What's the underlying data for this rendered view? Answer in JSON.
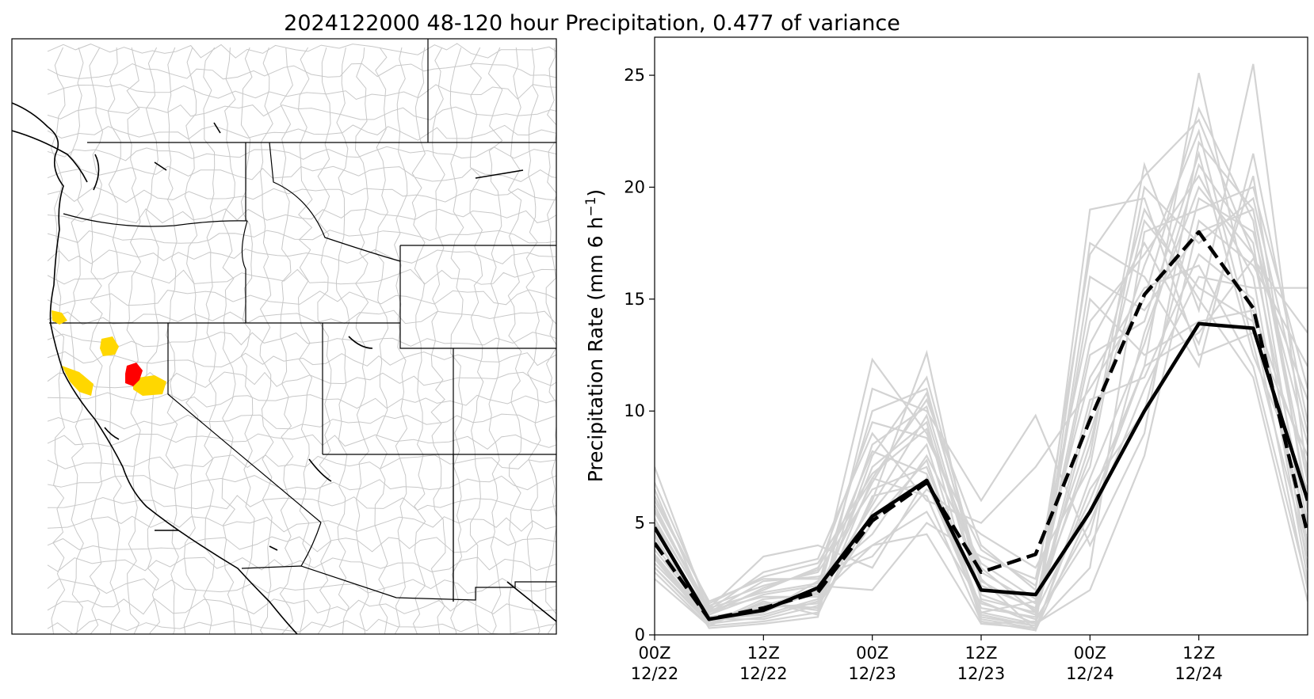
{
  "figure": {
    "title": "2024122000 48-120 hour Precipitation, 0.477 of variance"
  },
  "map_panel": {
    "highlight_colors": {
      "gold": "#FFD700",
      "red": "#FF0000"
    },
    "line_colors": {
      "boundary": "#000000",
      "basin": "#c8c8c8"
    }
  },
  "chart_data": {
    "type": "line",
    "title": "2024122000 48-120 hour Precipitation, 0.477 of variance",
    "xlabel": "",
    "ylabel": "Precipitation Rate (mm 6 h",
    "ylabel_sup": "−1",
    "ylabel_end": ")",
    "ylim": [
      0,
      26.7
    ],
    "xlim": [
      0,
      18
    ],
    "yticks": [
      0,
      5,
      10,
      15,
      20,
      25
    ],
    "xticks": [
      {
        "value": 0,
        "line1": "00Z",
        "line2": "12/22"
      },
      {
        "value": 3,
        "line1": "12Z",
        "line2": "12/22"
      },
      {
        "value": 6,
        "line1": "00Z",
        "line2": "12/23"
      },
      {
        "value": 9,
        "line1": "12Z",
        "line2": "12/23"
      },
      {
        "value": 12,
        "line1": "00Z",
        "line2": "12/24"
      },
      {
        "value": 15,
        "line1": "12Z",
        "line2": "12/24"
      }
    ],
    "x": [
      0,
      1.5,
      3,
      4.5,
      6,
      7.5,
      9,
      10.5,
      12,
      13.5,
      15,
      16.5,
      18
    ],
    "series": [
      {
        "style": "solid",
        "color": "#000000",
        "values": [
          4.8,
          0.7,
          1.1,
          2.1,
          5.3,
          6.9,
          2.0,
          1.8,
          5.5,
          10.0,
          13.9,
          13.7,
          6.0
        ]
      },
      {
        "style": "dashed",
        "color": "#000000",
        "values": [
          4.1,
          0.7,
          1.2,
          1.9,
          5.1,
          6.8,
          2.8,
          3.6,
          9.6,
          15.2,
          18.0,
          14.6,
          4.5
        ]
      }
    ],
    "ensemble_color": "#d3d3d3",
    "ensemble": [
      [
        7.5,
        1.0,
        2.0,
        3.0,
        7.0,
        10.5,
        4.0,
        2.0,
        17.0,
        20.5,
        23.0,
        17.0,
        5.0
      ],
      [
        6.5,
        0.8,
        1.0,
        2.0,
        12.3,
        9.0,
        3.0,
        1.0,
        6.0,
        12.0,
        25.1,
        14.0,
        2.0
      ],
      [
        3.0,
        0.5,
        0.8,
        1.5,
        6.0,
        12.6,
        1.5,
        0.5,
        19.0,
        19.5,
        12.5,
        13.5,
        8.0
      ],
      [
        5.0,
        1.2,
        3.5,
        4.0,
        3.0,
        7.0,
        1.0,
        1.5,
        8.0,
        21.0,
        14.5,
        25.5,
        7.0
      ],
      [
        4.5,
        0.3,
        0.5,
        0.8,
        11.0,
        10.0,
        6.0,
        9.8,
        4.0,
        9.0,
        22.0,
        19.0,
        6.0
      ],
      [
        6.0,
        1.5,
        2.5,
        2.5,
        4.0,
        4.5,
        0.5,
        0.3,
        17.5,
        16.0,
        12.0,
        21.5,
        9.5
      ],
      [
        3.5,
        0.6,
        1.4,
        1.2,
        8.0,
        11.5,
        2.5,
        0.2,
        7.0,
        13.0,
        21.0,
        17.5,
        3.0
      ],
      [
        2.8,
        0.4,
        0.6,
        1.0,
        5.5,
        8.5,
        0.8,
        0.4,
        3.0,
        18.0,
        19.0,
        20.0,
        11.0
      ],
      [
        5.5,
        1.1,
        2.8,
        3.4,
        9.0,
        6.0,
        5.0,
        7.5,
        11.0,
        15.0,
        23.5,
        18.5,
        4.0
      ],
      [
        4.0,
        0.9,
        1.8,
        2.2,
        2.0,
        5.0,
        3.5,
        2.5,
        14.0,
        17.0,
        20.5,
        16.0,
        2.5
      ],
      [
        3.2,
        0.7,
        0.9,
        1.6,
        7.5,
        9.5,
        0.5,
        0.6,
        5.0,
        11.0,
        16.0,
        15.5,
        15.5
      ],
      [
        6.8,
        1.3,
        2.2,
        2.8,
        6.5,
        7.5,
        1.2,
        0.8,
        10.0,
        19.0,
        15.0,
        11.5,
        1.5
      ],
      [
        4.4,
        0.5,
        1.6,
        1.8,
        10.0,
        11.0,
        2.2,
        1.2,
        12.5,
        14.0,
        21.5,
        12.5,
        6.5
      ],
      [
        5.2,
        1.0,
        2.4,
        2.6,
        3.5,
        6.5,
        4.5,
        3.0,
        7.5,
        20.0,
        17.5,
        19.5,
        9.0
      ],
      [
        3.8,
        0.8,
        1.2,
        1.4,
        8.5,
        10.2,
        1.8,
        0.9,
        15.0,
        12.5,
        14.0,
        14.5,
        7.5
      ],
      [
        4.7,
        0.6,
        1.0,
        2.4,
        4.5,
        8.0,
        3.2,
        1.6,
        9.0,
        16.5,
        22.5,
        13.0,
        3.5
      ],
      [
        2.5,
        0.4,
        1.5,
        0.9,
        6.2,
        6.8,
        1.0,
        0.5,
        2.0,
        8.0,
        18.5,
        16.5,
        12.0
      ],
      [
        6.2,
        1.4,
        2.6,
        3.2,
        7.2,
        9.2,
        2.8,
        1.4,
        13.0,
        17.5,
        13.0,
        20.5,
        5.5
      ],
      [
        3.6,
        0.7,
        0.7,
        1.3,
        5.0,
        7.8,
        0.7,
        0.3,
        6.5,
        10.0,
        19.5,
        18.0,
        8.5
      ],
      [
        5.8,
        0.9,
        2.1,
        2.9,
        9.5,
        8.8,
        3.8,
        2.2,
        11.5,
        15.5,
        16.5,
        12.0,
        2.2
      ],
      [
        4.2,
        1.1,
        1.7,
        1.7,
        4.0,
        5.5,
        1.4,
        0.7,
        4.5,
        13.5,
        20.0,
        17.0,
        10.5
      ],
      [
        3.4,
        0.5,
        1.3,
        2.0,
        6.8,
        10.8,
        2.4,
        1.1,
        8.5,
        18.5,
        15.5,
        14.0,
        4.8
      ],
      [
        5.6,
        1.2,
        1.9,
        2.3,
        8.2,
        7.2,
        0.9,
        0.4,
        16.0,
        14.5,
        18.0,
        19.0,
        6.8
      ],
      [
        4.9,
        0.7,
        1.1,
        1.9,
        5.8,
        9.8,
        1.6,
        1.0,
        10.5,
        11.5,
        17.0,
        15.0,
        3.8
      ],
      [
        3.0,
        0.6,
        1.4,
        1.1,
        7.0,
        6.2,
        0.6,
        0.2,
        5.5,
        12.0,
        13.5,
        16.8,
        13.5
      ]
    ]
  }
}
